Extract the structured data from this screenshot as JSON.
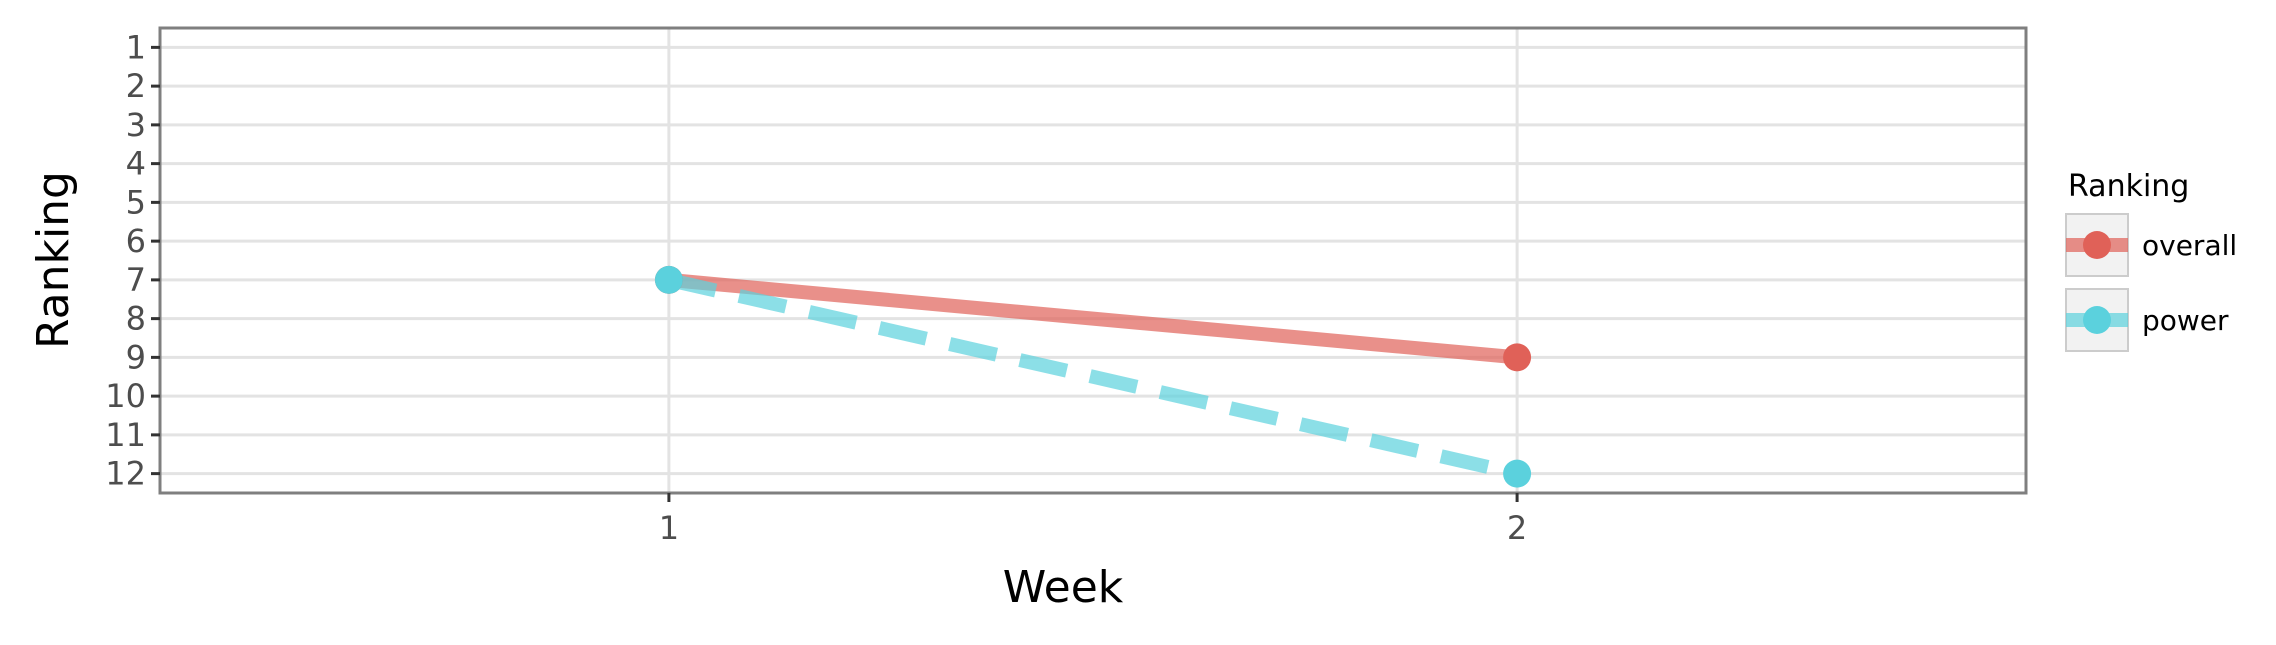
{
  "chart_data": {
    "type": "line",
    "title": "",
    "xlabel": "Week",
    "ylabel": "Ranking",
    "x": [
      1,
      2
    ],
    "x_ticks": [
      "1",
      "2"
    ],
    "x_range": [
      0.4,
      2.6
    ],
    "y_ticks": [
      "1",
      "2",
      "3",
      "4",
      "5",
      "6",
      "7",
      "8",
      "9",
      "10",
      "11",
      "12"
    ],
    "y_range": [
      0.5,
      12.5
    ],
    "y_reversed": true,
    "grid": true,
    "legend": {
      "title": "Ranking",
      "placement": "right"
    },
    "series": [
      {
        "name": "overall",
        "values": [
          7,
          9
        ],
        "color": "#e06158",
        "line_style": "solid"
      },
      {
        "name": "power",
        "values": [
          7,
          12
        ],
        "color": "#5bd1dd",
        "line_style": "dashed"
      }
    ]
  }
}
